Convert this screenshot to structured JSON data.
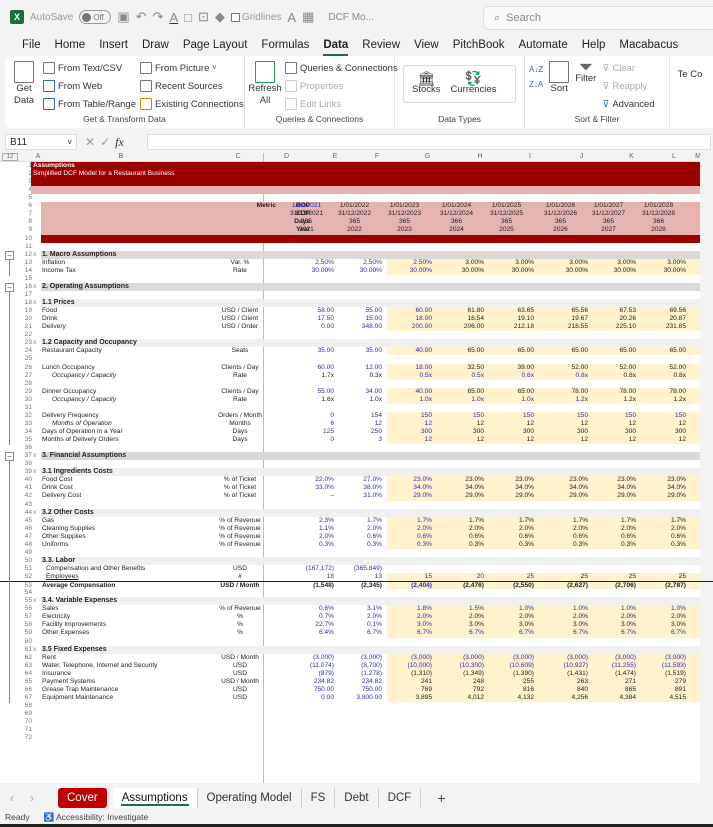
{
  "titlebar": {
    "autosave_label": "AutoSave",
    "autosave_state": "Off",
    "gridlines_label": "Gridlines",
    "doc_name": "DCF Mo...",
    "search_placeholder": "Search"
  },
  "menu": {
    "items": [
      "File",
      "Home",
      "Insert",
      "Draw",
      "Page Layout",
      "Formulas",
      "Data",
      "Review",
      "View",
      "PitchBook",
      "Automate",
      "Help",
      "Macabacus"
    ],
    "active": "Data"
  },
  "ribbon": {
    "get_transform": {
      "get_data": "Get Data",
      "from_text_csv": "From Text/CSV",
      "from_web": "From Web",
      "from_table_range": "From Table/Range",
      "from_picture": "From Picture",
      "recent_sources": "Recent Sources",
      "existing_connections": "Existing Connections",
      "label": "Get & Transform Data"
    },
    "queries": {
      "refresh_all": "Refresh All",
      "queries_connections": "Queries & Connections",
      "properties": "Properties",
      "edit_links": "Edit Links",
      "label": "Queries & Connections"
    },
    "data_types": {
      "stocks": "Stocks",
      "currencies": "Currencies",
      "label": "Data Types"
    },
    "sort_filter": {
      "sort": "Sort",
      "filter": "Filter",
      "clear": "Clear",
      "reapply": "Reapply",
      "advanced": "Advanced",
      "label": "Sort & Filter"
    },
    "extra_partial": "Te Co"
  },
  "formula_bar": {
    "name_box": "B11",
    "formula": ""
  },
  "columns": [
    "A",
    "B",
    "C",
    "D",
    "E",
    "F",
    "G",
    "H",
    "I",
    "J",
    "K",
    "L",
    "M"
  ],
  "outline_levels": "12",
  "sheet": {
    "title": "Assumptions",
    "subtitle": "Simplified DCF Model for a Restaurant Business",
    "metric_label": "Metric",
    "period_labels": [
      "BOP",
      "EOP",
      "Days",
      "Year"
    ],
    "periods": {
      "bop": [
        "1/01/2021",
        "1/01/2022",
        "1/01/2023",
        "1/01/2024",
        "1/01/2025",
        "1/01/2026",
        "1/01/2027",
        "1/01/2028"
      ],
      "eop": [
        "31/12/2021",
        "31/12/2022",
        "31/12/2023",
        "31/12/2024",
        "31/12/2025",
        "31/12/2026",
        "31/12/2027",
        "31/12/2028"
      ],
      "days": [
        "365",
        "365",
        "365",
        "366",
        "365",
        "365",
        "365",
        "366"
      ],
      "year": [
        "2021",
        "2022",
        "2023",
        "2024",
        "2025",
        "2026",
        "2027",
        "2028"
      ]
    },
    "rows": [
      {
        "r": 12,
        "type": "section",
        "label": "1. Macro Assumptions",
        "x": true
      },
      {
        "r": 13,
        "label": "Inflation",
        "unit": "Var. %",
        "vals": [
          "2.50%",
          "2.50%",
          "2.50%",
          "3.00%",
          "3.00%",
          "3.00%",
          "3.00%",
          "3.00%"
        ],
        "colors": "bbbddddd"
      },
      {
        "r": 14,
        "label": "Income Tax",
        "unit": "Rate",
        "vals": [
          "30.00%",
          "30.00%",
          "30.00%",
          "30.00%",
          "30.00%",
          "30.00%",
          "30.00%",
          "30.00%"
        ],
        "colors": "bbbddddd"
      },
      {
        "r": 15
      },
      {
        "r": 16,
        "type": "section",
        "label": "2. Operating Assumptions",
        "x": true
      },
      {
        "r": 17
      },
      {
        "r": 18,
        "type": "sub",
        "label": "1.1 Prices",
        "x": true
      },
      {
        "r": 19,
        "label": "Food",
        "unit": "USD / Client",
        "vals": [
          "58.00",
          "55.00",
          "60.00",
          "61.80",
          "63.65",
          "65.56",
          "67.53",
          "69.56"
        ],
        "colors": "bbbddddd"
      },
      {
        "r": 20,
        "label": "Drink",
        "unit": "USD / Client",
        "vals": [
          "17.50",
          "15.00",
          "18.00",
          "18.54",
          "19.10",
          "19.67",
          "20.26",
          "20.87"
        ],
        "colors": "bbbddddd"
      },
      {
        "r": 21,
        "label": "Delivery",
        "unit": "USD / Order",
        "vals": [
          "0.00",
          "348.00",
          "200.00",
          "206.00",
          "212.18",
          "218.55",
          "225.10",
          "231.85"
        ],
        "colors": "bbbddddd"
      },
      {
        "r": 22
      },
      {
        "r": 23,
        "type": "sub",
        "label": "1.2 Capacity and Occupancy",
        "x": true
      },
      {
        "r": 24,
        "label": "Restaurant Capacity",
        "unit": "Seats",
        "vals": [
          "35.00",
          "35.00",
          "40.00",
          "65.00",
          "65.00",
          "65.00",
          "65.00",
          "65.00"
        ],
        "colors": "bbbddddd"
      },
      {
        "r": 25
      },
      {
        "r": 26,
        "label": "Lunch Occupancy",
        "unit": "Clients / Day",
        "vals": [
          "60.00",
          "12.00",
          "18.00",
          "32.50",
          "39.00",
          "52.00",
          "52.00",
          "52.00"
        ],
        "colors": "bbbddddd"
      },
      {
        "r": 27,
        "label": "Occupancy / Capacity",
        "unit": "Rate",
        "italic": true,
        "vals": [
          "1.7x",
          "0.3x",
          "0.5x",
          "0.5x",
          "0.6x",
          "0.8x",
          "0.8x",
          "0.8x"
        ],
        "colors": "ddbbbbdd"
      },
      {
        "r": 28
      },
      {
        "r": 29,
        "label": "Dinner Occupancy",
        "unit": "Clients / Day",
        "vals": [
          "55.00",
          "34.00",
          "40.00",
          "65.00",
          "65.00",
          "78.00",
          "78.00",
          "78.00"
        ],
        "colors": "bbbddddd"
      },
      {
        "r": 30,
        "label": "Occupancy / Capacity",
        "unit": "Rate",
        "italic": true,
        "vals": [
          "1.6x",
          "1.0x",
          "1.0x",
          "1.0x",
          "1.0x",
          "1.2x",
          "1.2x",
          "1.2x"
        ],
        "colors": "ddbbbbdd"
      },
      {
        "r": 31
      },
      {
        "r": 32,
        "label": "Delivery Frequency",
        "unit": "Orders / Month",
        "vals": [
          "0",
          "154",
          "150",
          "150",
          "150",
          "150",
          "150",
          "150"
        ],
        "colors": "bbbbbbbb"
      },
      {
        "r": 33,
        "label": "Months of Operation",
        "unit": "Months",
        "italic": true,
        "vals": [
          "6",
          "12",
          "12",
          "12",
          "12",
          "12",
          "12",
          "12"
        ],
        "colors": "bbbddddd"
      },
      {
        "r": 34,
        "label": "Days of Operation in a Year",
        "unit": "Days",
        "vals": [
          "125",
          "250",
          "300",
          "300",
          "300",
          "300",
          "300",
          "300"
        ],
        "colors": "bbbddddd"
      },
      {
        "r": 35,
        "label": "Months of Delivery Orders",
        "unit": "Days",
        "vals": [
          "0",
          "3",
          "12",
          "12",
          "12",
          "12",
          "12",
          "12"
        ],
        "colors": "bbbddddd"
      },
      {
        "r": 36
      },
      {
        "r": 37,
        "type": "section",
        "label": "3. Financial Assumptions",
        "x": true
      },
      {
        "r": 38
      },
      {
        "r": 39,
        "type": "sub",
        "label": "3.1 Ingredients Costs",
        "x": true
      },
      {
        "r": 40,
        "label": "Food Cost",
        "unit": "% of Ticket",
        "vals": [
          "22.0%",
          "27.0%",
          "23.0%",
          "23.0%",
          "23.0%",
          "23.0%",
          "23.0%",
          "23.0%"
        ],
        "colors": "bbbddddd"
      },
      {
        "r": 41,
        "label": "Drink Cost",
        "unit": "% of Ticket",
        "vals": [
          "33.0%",
          "38.0%",
          "34.0%",
          "34.0%",
          "34.0%",
          "34.0%",
          "34.0%",
          "34.0%"
        ],
        "colors": "bbbddddd"
      },
      {
        "r": 42,
        "label": "Delivery Cost",
        "unit": "% of Ticket",
        "vals": [
          "–",
          "31.0%",
          "29.0%",
          "29.0%",
          "29.0%",
          "29.0%",
          "29.0%",
          "29.0%"
        ],
        "colors": "bbbddddd"
      },
      {
        "r": 43
      },
      {
        "r": 44,
        "type": "sub",
        "label": "3.2 Other Costs",
        "x": true
      },
      {
        "r": 45,
        "label": "Gas",
        "unit": "% of Revenue",
        "vals": [
          "2.3%",
          "1.7%",
          "1.7%",
          "1.7%",
          "1.7%",
          "1.7%",
          "1.7%",
          "1.7%"
        ],
        "colors": "bbbddddd"
      },
      {
        "r": 46,
        "label": "Cleaning Supplies",
        "unit": "% of Revenue",
        "vals": [
          "1.1%",
          "2.0%",
          "2.0%",
          "2.0%",
          "2.0%",
          "2.0%",
          "2.0%",
          "2.0%"
        ],
        "colors": "bbbddddd"
      },
      {
        "r": 47,
        "label": "Other Supplies",
        "unit": "% of Revenue",
        "vals": [
          "2.0%",
          "0.6%",
          "0.6%",
          "0.6%",
          "0.6%",
          "0.6%",
          "0.6%",
          "0.6%"
        ],
        "colors": "bbbddddd"
      },
      {
        "r": 48,
        "label": "Uniforms",
        "unit": "% of Revenue",
        "vals": [
          "0.3%",
          "0.3%",
          "0.3%",
          "0.3%",
          "0.3%",
          "0.3%",
          "0.3%",
          "0.3%"
        ],
        "colors": "bbbddddd"
      },
      {
        "r": 49
      },
      {
        "r": 50,
        "type": "sub",
        "label": "3.3. Labor",
        "x": false
      },
      {
        "r": 51,
        "label": "Compensation and Other Benefits",
        "unit": "USD",
        "indent": true,
        "vals": [
          "(167,172)",
          "(365,849)",
          "",
          "",
          "",
          "",
          "",
          ""
        ],
        "colors": "bbbbbbbb",
        "nofc": true
      },
      {
        "r": 52,
        "label": "Employees",
        "unit": "#",
        "indent": true,
        "vals": [
          "18",
          "13",
          "15",
          "20",
          "25",
          "25",
          "25",
          "25"
        ],
        "colors": "bbbbbddd"
      },
      {
        "r": 53,
        "type": "total",
        "label": "Average Compensation",
        "unit": "USD / Month",
        "vals": [
          "(1,548)",
          "(2,345)",
          "(2,404)",
          "(2,476)",
          "(2,550)",
          "(2,627)",
          "(2,706)",
          "(2,787)"
        ],
        "colors": "ddbddddd"
      },
      {
        "r": 54
      },
      {
        "r": 55,
        "type": "sub",
        "label": "3.4. Variable Expenses",
        "x": true
      },
      {
        "r": 56,
        "label": "Sales",
        "unit": "% of Revenue",
        "vals": [
          "0.6%",
          "3.1%",
          "1.8%",
          "1.5%",
          "1.0%",
          "1.0%",
          "1.0%",
          "1.0%"
        ],
        "colors": "bbbbbbbb"
      },
      {
        "r": 57,
        "label": "Electricity",
        "unit": "%",
        "vals": [
          "0.7%",
          "2.0%",
          "2.0%",
          "2.0%",
          "2.0%",
          "2.0%",
          "2.0%",
          "2.0%"
        ],
        "colors": "bbbddddd"
      },
      {
        "r": 58,
        "label": "Facility Improvements",
        "unit": "%",
        "vals": [
          "22.7%",
          "0.1%",
          "3.0%",
          "3.0%",
          "3.0%",
          "3.0%",
          "3.0%",
          "3.0%"
        ],
        "colors": "bbbddddd"
      },
      {
        "r": 59,
        "label": "Other Expenses",
        "unit": "%",
        "vals": [
          "6.4%",
          "6.7%",
          "6.7%",
          "6.7%",
          "6.7%",
          "6.7%",
          "6.7%",
          "6.7%"
        ],
        "colors": "bbbbbbbb"
      },
      {
        "r": 60
      },
      {
        "r": 61,
        "type": "sub",
        "label": "3.5 Fixed Expenses",
        "x": true
      },
      {
        "r": 62,
        "label": "Rent",
        "unit": "USD / Month",
        "vals": [
          "(3,000)",
          "(3,000)",
          "(3,000)",
          "(3,000)",
          "(3,000)",
          "(3,000)",
          "(3,000)",
          "(3,000)"
        ],
        "colors": "bbbbbbbb"
      },
      {
        "r": 63,
        "label": "Water, Telephone, Internet and Security",
        "unit": "USD",
        "vals": [
          "(11,074)",
          "(8,700)",
          "(10,000)",
          "(10,300)",
          "(10,609)",
          "(10,927)",
          "(11,255)",
          "(11,593)"
        ],
        "colors": "bbbbbbbb"
      },
      {
        "r": 64,
        "label": "Insurance",
        "unit": "USD",
        "vals": [
          "(879)",
          "(1,278)",
          "(1,310)",
          "(1,349)",
          "(1,390)",
          "(1,431)",
          "(1,474)",
          "(1,519)"
        ],
        "colors": "bbdddddd"
      },
      {
        "r": 65,
        "label": "Payment Systems",
        "unit": "USD / Month",
        "vals": [
          "234.82",
          "234.82",
          "241",
          "248",
          "255",
          "263",
          "271",
          "279"
        ],
        "colors": "bbdddddd"
      },
      {
        "r": 66,
        "label": "Grease Trap Maintenance",
        "unit": "USD",
        "vals": [
          "750.00",
          "750.00",
          "769",
          "792",
          "816",
          "840",
          "865",
          "891"
        ],
        "colors": "bbdddddd"
      },
      {
        "r": 67,
        "label": "Equipment Maintenance",
        "unit": "USD",
        "vals": [
          "0.00",
          "3,800.00",
          "3,895",
          "4,012",
          "4,132",
          "4,256",
          "4,384",
          "4,515"
        ],
        "colors": "bbdddddd"
      },
      {
        "r": 68
      },
      {
        "r": 69
      },
      {
        "r": 70
      },
      {
        "r": 71
      },
      {
        "r": 72
      }
    ]
  },
  "sheet_tabs": [
    "Cover",
    "Assumptions",
    "Operating Model",
    "FS",
    "Debt",
    "DCF"
  ],
  "active_tab": "Assumptions",
  "add_sheet": "+",
  "status": {
    "ready": "Ready",
    "accessibility": "Accessibility: Investigate"
  },
  "colors": {
    "header_band": "#9b0000",
    "pink_band": "#e6b4b0",
    "forecast_fill": "#fff2cc",
    "input_blue": "#2c2cb3",
    "excel_green": "#1d6f42",
    "cover_tab": "#c00000"
  }
}
